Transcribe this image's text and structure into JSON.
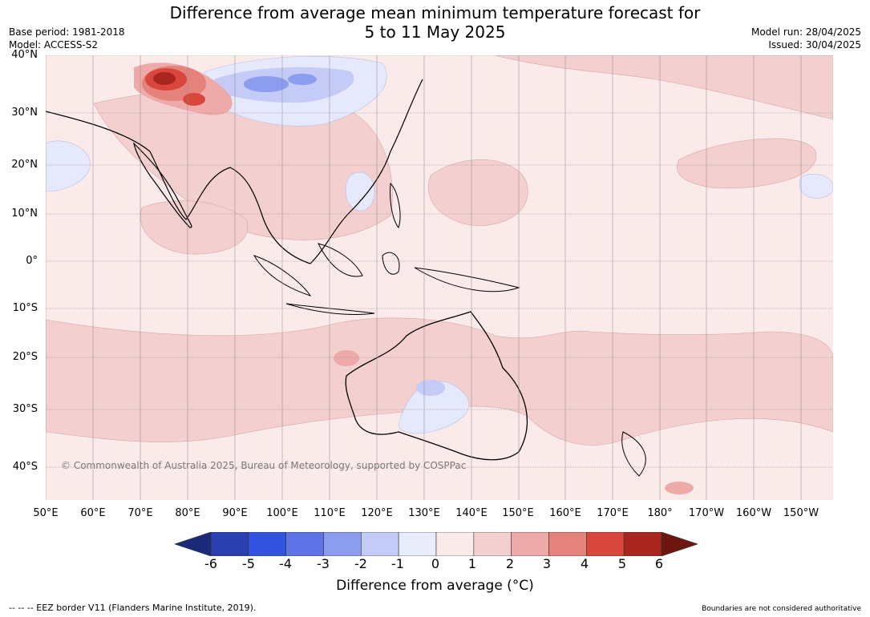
{
  "title_line1": "Difference from average mean minimum temperature forecast for",
  "title_line2": "5 to 11 May 2025",
  "base_period": "Base period: 1981-2018",
  "model": "Model: ACCESS-S2",
  "model_run": "Model run: 28/04/2025",
  "issued": "Issued: 30/04/2025",
  "lon_ticks": [
    "50°E",
    "60°E",
    "70°E",
    "80°E",
    "90°E",
    "100°E",
    "110°E",
    "120°E",
    "130°E",
    "140°E",
    "150°E",
    "160°E",
    "170°E",
    "180°",
    "170°W",
    "160°W",
    "150°W"
  ],
  "lat_ticks": [
    "40°N",
    "30°N",
    "20°N",
    "10°N",
    "0°",
    "10°S",
    "20°S",
    "30°S",
    "40°S"
  ],
  "colorbar": {
    "labels": [
      "-6",
      "-5",
      "-4",
      "-3",
      "-2",
      "-1",
      "0",
      "1",
      "2",
      "3",
      "4",
      "5",
      "6"
    ],
    "colors": [
      "#1a2a78",
      "#2a3fb0",
      "#3352e0",
      "#5e73e6",
      "#8c9cee",
      "#c3cbf6",
      "#e9ecfb",
      "#fbeaea",
      "#f4cfcf",
      "#eeaaa8",
      "#e6827c",
      "#d9463c",
      "#a8261f",
      "#6e1710"
    ],
    "title": "Difference from average (°C)"
  },
  "copyright": "© Commonwealth of Australia 2025, Bureau of Meteorology, supported by COSPPac",
  "footer_left": "-- -- -- EEZ border V11 (Flanders Marine Institute, 2019).",
  "footer_right": "Boundaries are not considered authoritative"
}
